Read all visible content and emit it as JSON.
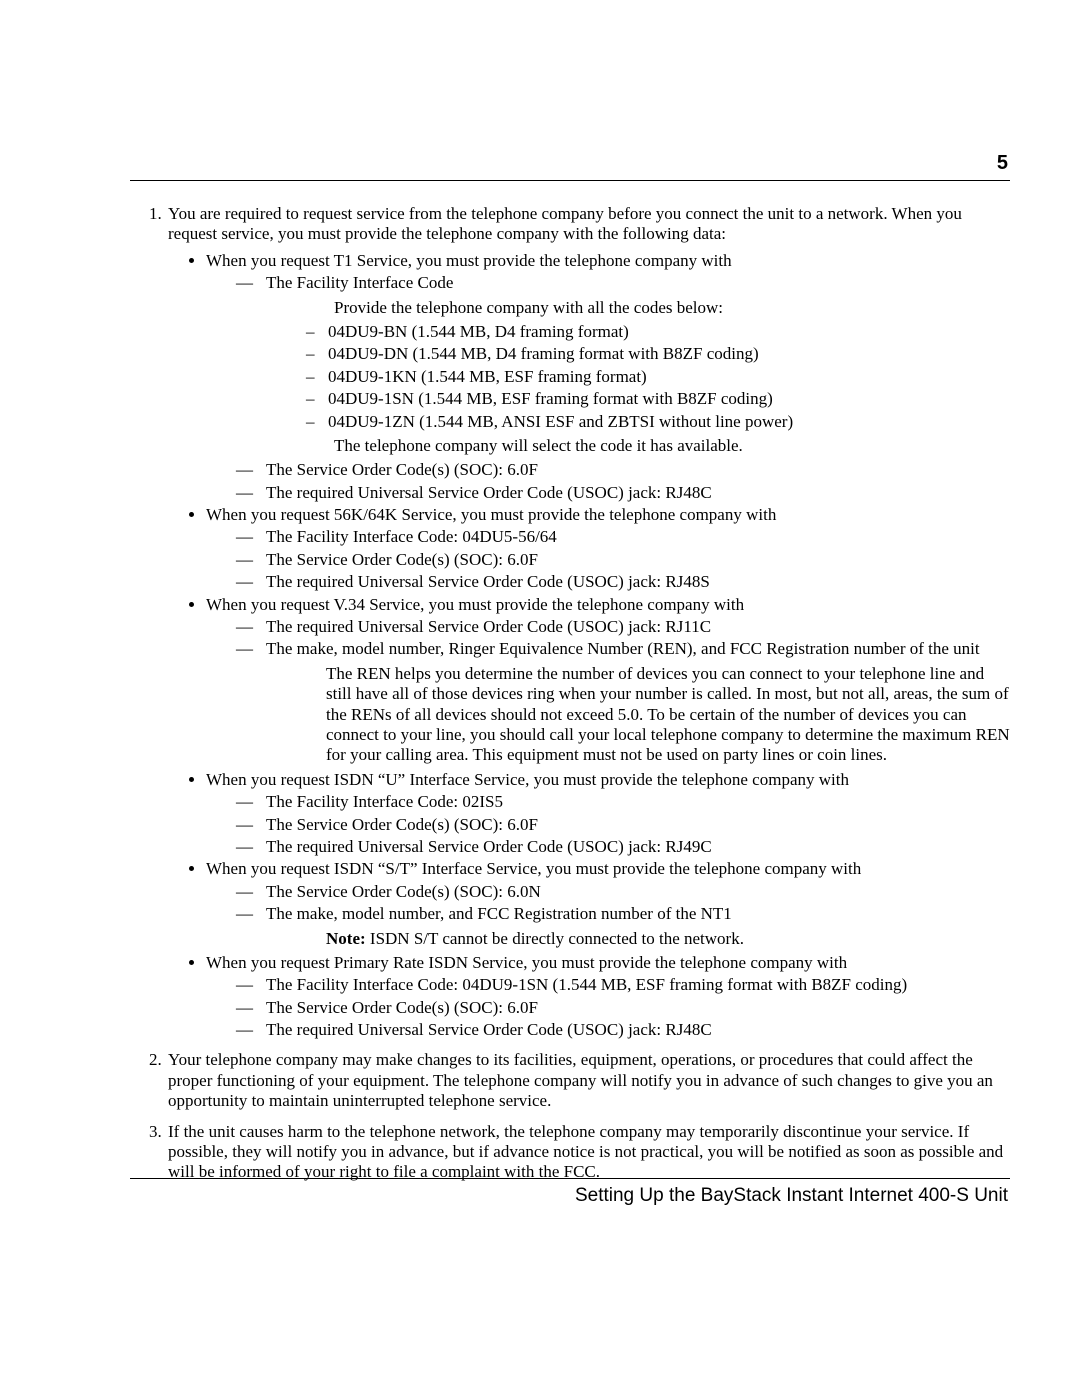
{
  "page_number": "5",
  "footer": "Setting Up the BayStack Instant Internet 400-S Unit",
  "item1": {
    "intro": "You are required to request service from the telephone company before you connect the unit to a network. When you request service, you must provide the telephone company with the following data:",
    "t1": {
      "lead": "When you request T1 Service, you must provide the telephone company with",
      "fic_label": "The Facility Interface Code",
      "fic_intro": "Provide the telephone company with all the codes below:",
      "codes": [
        "04DU9-BN (1.544 MB, D4 framing format)",
        "04DU9-DN (1.544 MB, D4 framing format with B8ZF coding)",
        "04DU9-1KN (1.544 MB, ESF framing format)",
        "04DU9-1SN (1.544 MB, ESF framing format with B8ZF coding)",
        "04DU9-1ZN (1.544 MB, ANSI ESF and ZBTSI without line power)"
      ],
      "fic_outro": "The telephone company will select the code it has available.",
      "soc": "The Service Order Code(s) (SOC): 6.0F",
      "usoc": "The required Universal Service Order Code (USOC) jack: RJ48C"
    },
    "s56k": {
      "lead": "When you request 56K/64K Service, you must provide the telephone company with",
      "fic": "The Facility Interface Code: 04DU5-56/64",
      "soc": "The Service Order Code(s) (SOC): 6.0F",
      "usoc": "The required Universal Service Order Code (USOC) jack: RJ48S"
    },
    "v34": {
      "lead": "When you request V.34 Service, you must provide the telephone company with",
      "usoc": "The required Universal Service Order Code (USOC) jack: RJ11C",
      "make": "The make, model number, Ringer Equivalence Number (REN), and FCC Registration number of the unit",
      "ren_para": "The REN helps you determine the number of devices you can connect to your telephone line and still have all of those devices ring when your number is called. In most, but not all, areas, the sum of the RENs of all devices should not exceed 5.0. To be certain of the number of devices you can connect to your line, you should call your local telephone company to determine the maximum REN for your calling area. This equipment must not be used on party lines or coin lines."
    },
    "isdn_u": {
      "lead": "When you request ISDN “U” Interface Service, you must provide the telephone company with",
      "fic": "The Facility Interface Code: 02IS5",
      "soc": "The Service Order Code(s) (SOC): 6.0F",
      "usoc": "The required Universal Service Order Code (USOC) jack: RJ49C"
    },
    "isdn_st": {
      "lead": "When you request ISDN “S/T” Interface Service, you must provide the telephone company with",
      "soc": "The Service Order Code(s) (SOC): 6.0N",
      "make": "The make, model number, and FCC Registration number of the NT1",
      "note_label": "Note:",
      "note_text": "  ISDN S/T cannot be directly connected to the network."
    },
    "pri": {
      "lead": "When you request Primary Rate ISDN Service, you must provide the telephone company with",
      "fic": "The Facility Interface Code: 04DU9-1SN (1.544 MB, ESF framing format with B8ZF coding)",
      "soc": "The Service Order Code(s) (SOC): 6.0F",
      "usoc": "The required Universal Service Order Code (USOC) jack: RJ48C"
    }
  },
  "item2": "Your telephone company may make changes to its facilities, equipment, operations, or procedures that could affect the proper functioning of your equipment. The telephone company will notify you in advance of such changes to give you an opportunity to maintain uninterrupted telephone service.",
  "item3": "If the unit causes harm to the telephone network, the telephone company may temporarily discontinue your service. If possible, they will notify you in advance, but if advance notice is not practical, you will be notified as soon as possible and will be informed of your right to file a complaint with the FCC."
}
